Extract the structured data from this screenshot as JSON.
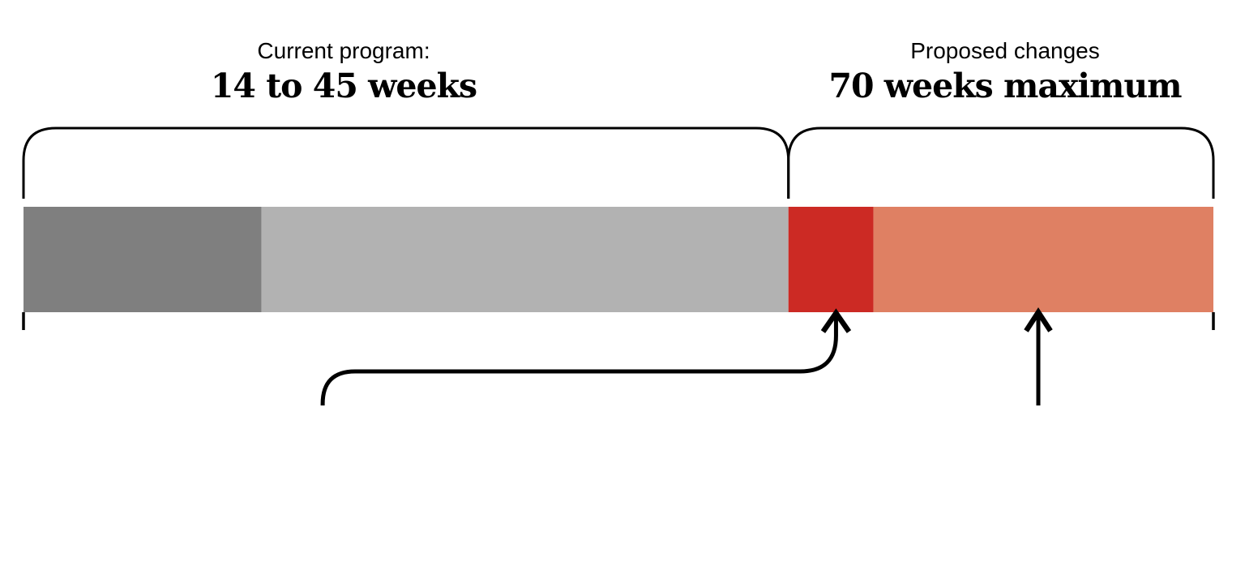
{
  "page": {
    "background_color": "#ffffff",
    "line_color": "#000000"
  },
  "headings": {
    "left": {
      "line1": "Current program:",
      "line2": "14 to 45 weeks"
    },
    "right": {
      "line1": "Proposed changes",
      "line2": "70 weeks maximum"
    }
  },
  "chart_data": {
    "type": "bar",
    "orientation": "horizontal",
    "unit": "weeks",
    "axis_range": [
      0,
      70
    ],
    "grid": false,
    "legend": false,
    "segments": [
      {
        "name": "current-minimum-segment",
        "from_week": 0,
        "to_week": 14,
        "color": "#7f7f7f"
      },
      {
        "name": "current-range-segment",
        "from_week": 14,
        "to_week": 45,
        "color": "#b2b2b2"
      },
      {
        "name": "proposed-added-segment",
        "from_week": 45,
        "to_week": 50,
        "color": "#cc2a24"
      },
      {
        "name": "proposed-maximum-segment",
        "from_week": 50,
        "to_week": 70,
        "color": "#df8063"
      }
    ],
    "brackets": [
      {
        "name": "current-program-bracket",
        "from_week": 0,
        "to_week": 45,
        "heading": "Current program:",
        "subheading": "14 to 45 weeks"
      },
      {
        "name": "proposed-changes-bracket",
        "from_week": 45,
        "to_week": 70,
        "heading": "Proposed changes",
        "subheading": "70 weeks maximum"
      }
    ],
    "annotations": [
      {
        "name": "curved-arrow",
        "type": "curved-arrow",
        "points_to_week": 47.8,
        "start_week": 17.6
      },
      {
        "name": "straight-arrow",
        "type": "straight-arrow",
        "points_to_week": 59.7
      }
    ],
    "axis_ticks_weeks": [
      0,
      70
    ]
  }
}
